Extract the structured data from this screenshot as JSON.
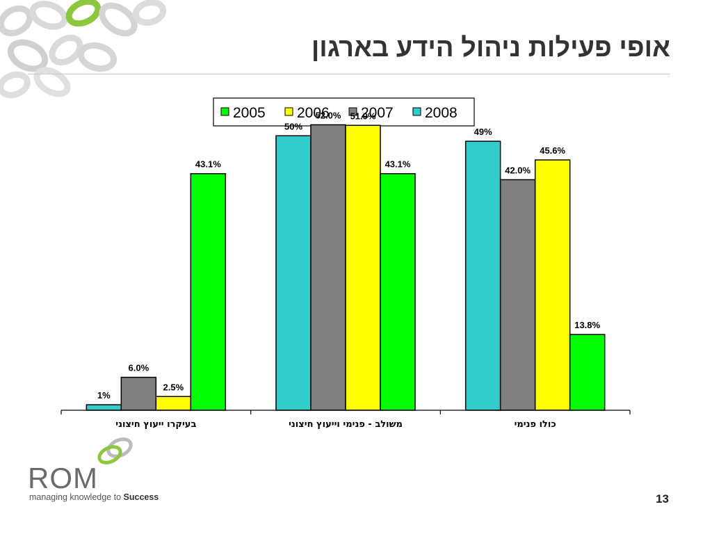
{
  "slide": {
    "title": "אופי פעילות ניהול הידע בארגון",
    "page_number": "13"
  },
  "logo": {
    "word": "ROM",
    "tagline_prefix": "managing knowledge to ",
    "tagline_bold": "Success"
  },
  "colors": {
    "2005": "#00ff00",
    "2006": "#ffff00",
    "2007": "#808080",
    "2008": "#33cccc",
    "deco_gray": "#c8c8c8",
    "deco_green": "#8dc63f"
  },
  "chart_data": {
    "type": "bar",
    "categories": [
      "בעיקרו ייעוץ חיצוני",
      "משולב - פנימי וייעוץ חיצוני",
      "כולו פנימי"
    ],
    "series": [
      {
        "name": "2008",
        "values": [
          1,
          50,
          49
        ],
        "labels": [
          "1%",
          "50%",
          "49%"
        ]
      },
      {
        "name": "2007",
        "values": [
          6.0,
          52.0,
          42.0
        ],
        "labels": [
          "6.0%",
          "52.0%",
          "42.0%"
        ]
      },
      {
        "name": "2006",
        "values": [
          2.5,
          51.9,
          45.6
        ],
        "labels": [
          "2.5%",
          "51.9%",
          "45.6%"
        ]
      },
      {
        "name": "2005",
        "values": [
          43.1,
          43.1,
          13.8
        ],
        "labels": [
          "43.1%",
          "43.1%",
          "13.8%"
        ]
      }
    ],
    "legend": {
      "order": [
        "2005",
        "2006",
        "2007",
        "2008"
      ],
      "position": "top"
    },
    "ylim": [
      0,
      57
    ],
    "grid": false,
    "title": "",
    "xlabel": "",
    "ylabel": ""
  }
}
